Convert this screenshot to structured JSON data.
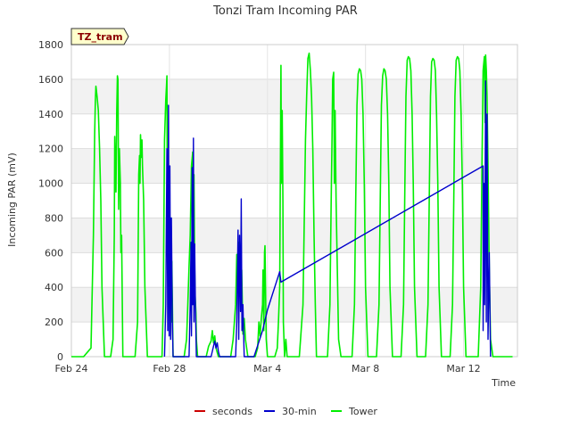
{
  "chart_data": {
    "type": "line",
    "title": "Tonzi Tram Incoming PAR",
    "xlabel": "Time",
    "ylabel": "Incoming PAR (mV)",
    "badge": "TZ_tram",
    "ylim": [
      0,
      1800
    ],
    "y_ticks": [
      0,
      200,
      400,
      600,
      800,
      1000,
      1200,
      1400,
      1600,
      1800
    ],
    "xlim": [
      0,
      18.2
    ],
    "x_ticks": [
      {
        "value": 0,
        "label": "Feb 24"
      },
      {
        "value": 4,
        "label": "Feb 28"
      },
      {
        "value": 8,
        "label": "Mar 4"
      },
      {
        "value": 12,
        "label": "Mar 8"
      },
      {
        "value": 16,
        "label": "Mar 12"
      }
    ],
    "series": [
      {
        "name": "seconds",
        "color": "#cc0000",
        "points": []
      },
      {
        "name": "30-min",
        "color": "#0000cc",
        "points": [
          [
            3.8,
            0
          ],
          [
            3.85,
            300
          ],
          [
            3.9,
            1200
          ],
          [
            3.93,
            150
          ],
          [
            3.96,
            1450
          ],
          [
            3.99,
            120
          ],
          [
            4.02,
            1100
          ],
          [
            4.05,
            100
          ],
          [
            4.08,
            800
          ],
          [
            4.12,
            200
          ],
          [
            4.15,
            0
          ],
          [
            4.8,
            0
          ],
          [
            4.85,
            300
          ],
          [
            4.88,
            660
          ],
          [
            4.9,
            120
          ],
          [
            4.93,
            1090
          ],
          [
            4.95,
            300
          ],
          [
            4.98,
            1260
          ],
          [
            5.0,
            200
          ],
          [
            5.03,
            650
          ],
          [
            5.06,
            300
          ],
          [
            5.1,
            0
          ],
          [
            5.7,
            0
          ],
          [
            5.8,
            60
          ],
          [
            5.85,
            90
          ],
          [
            5.9,
            50
          ],
          [
            5.95,
            80
          ],
          [
            6.0,
            30
          ],
          [
            6.05,
            0
          ],
          [
            6.7,
            0
          ],
          [
            6.75,
            200
          ],
          [
            6.8,
            730
          ],
          [
            6.83,
            100
          ],
          [
            6.86,
            700
          ],
          [
            6.9,
            260
          ],
          [
            6.93,
            910
          ],
          [
            6.96,
            150
          ],
          [
            7.0,
            300
          ],
          [
            7.05,
            0
          ],
          [
            7.45,
            0
          ],
          [
            7.8,
            150
          ],
          [
            8.0,
            270
          ],
          [
            8.5,
            490
          ],
          [
            8.55,
            430
          ],
          [
            16.8,
            1100
          ],
          [
            16.8,
            150
          ],
          [
            16.83,
            1000
          ],
          [
            16.86,
            300
          ],
          [
            16.9,
            1590
          ],
          [
            16.93,
            200
          ],
          [
            16.96,
            1400
          ],
          [
            17.0,
            100
          ],
          [
            17.05,
            600
          ],
          [
            17.1,
            0
          ]
        ]
      },
      {
        "name": "Tower",
        "color": "#00ee00",
        "points": [
          [
            0,
            0
          ],
          [
            0.5,
            0
          ],
          [
            0.8,
            50
          ],
          [
            0.9,
            700
          ],
          [
            0.95,
            1280
          ],
          [
            0.98,
            1480
          ],
          [
            1.0,
            1560
          ],
          [
            1.05,
            1500
          ],
          [
            1.1,
            1420
          ],
          [
            1.15,
            1200
          ],
          [
            1.2,
            900
          ],
          [
            1.25,
            400
          ],
          [
            1.35,
            0
          ],
          [
            1.6,
            0
          ],
          [
            1.7,
            100
          ],
          [
            1.75,
            700
          ],
          [
            1.77,
            1270
          ],
          [
            1.8,
            1050
          ],
          [
            1.82,
            950
          ],
          [
            1.85,
            1400
          ],
          [
            1.88,
            1620
          ],
          [
            1.9,
            1600
          ],
          [
            1.93,
            850
          ],
          [
            1.96,
            1200
          ],
          [
            2.0,
            1000
          ],
          [
            2.02,
            600
          ],
          [
            2.05,
            700
          ],
          [
            2.1,
            0
          ],
          [
            2.6,
            0
          ],
          [
            2.7,
            200
          ],
          [
            2.75,
            1050
          ],
          [
            2.78,
            1160
          ],
          [
            2.8,
            1000
          ],
          [
            2.82,
            1280
          ],
          [
            2.85,
            1150
          ],
          [
            2.88,
            1250
          ],
          [
            2.9,
            1100
          ],
          [
            2.95,
            900
          ],
          [
            3.0,
            400
          ],
          [
            3.1,
            0
          ],
          [
            3.7,
            0
          ],
          [
            3.75,
            300
          ],
          [
            3.8,
            1250
          ],
          [
            3.85,
            1480
          ],
          [
            3.88,
            1560
          ],
          [
            3.9,
            1620
          ],
          [
            3.92,
            500
          ],
          [
            3.95,
            1300
          ],
          [
            3.98,
            600
          ],
          [
            4.0,
            1050
          ],
          [
            4.03,
            400
          ],
          [
            4.05,
            800
          ],
          [
            4.08,
            200
          ],
          [
            4.1,
            550
          ],
          [
            4.15,
            0
          ],
          [
            4.6,
            0
          ],
          [
            4.7,
            100
          ],
          [
            4.75,
            300
          ],
          [
            4.8,
            520
          ],
          [
            4.85,
            700
          ],
          [
            4.9,
            1100
          ],
          [
            4.95,
            1180
          ],
          [
            4.97,
            600
          ],
          [
            5.0,
            1050
          ],
          [
            5.03,
            500
          ],
          [
            5.05,
            350
          ],
          [
            5.08,
            250
          ],
          [
            5.1,
            100
          ],
          [
            5.15,
            0
          ],
          [
            5.5,
            0
          ],
          [
            5.6,
            60
          ],
          [
            5.7,
            90
          ],
          [
            5.75,
            150
          ],
          [
            5.8,
            80
          ],
          [
            5.85,
            120
          ],
          [
            5.9,
            50
          ],
          [
            6.0,
            0
          ],
          [
            6.5,
            0
          ],
          [
            6.6,
            100
          ],
          [
            6.7,
            300
          ],
          [
            6.75,
            590
          ],
          [
            6.8,
            480
          ],
          [
            6.85,
            660
          ],
          [
            6.9,
            350
          ],
          [
            6.95,
            500
          ],
          [
            7.0,
            130
          ],
          [
            7.05,
            220
          ],
          [
            7.1,
            100
          ],
          [
            7.2,
            0
          ],
          [
            7.5,
            0
          ],
          [
            7.6,
            50
          ],
          [
            7.65,
            200
          ],
          [
            7.7,
            120
          ],
          [
            7.75,
            220
          ],
          [
            7.8,
            300
          ],
          [
            7.82,
            500
          ],
          [
            7.85,
            150
          ],
          [
            7.88,
            600
          ],
          [
            7.9,
            640
          ],
          [
            7.95,
            100
          ],
          [
            8.0,
            0
          ],
          [
            8.3,
            0
          ],
          [
            8.4,
            50
          ],
          [
            8.45,
            200
          ],
          [
            8.5,
            400
          ],
          [
            8.55,
            1680
          ],
          [
            8.57,
            1000
          ],
          [
            8.6,
            1420
          ],
          [
            8.63,
            900
          ],
          [
            8.65,
            200
          ],
          [
            8.7,
            0
          ],
          [
            8.75,
            100
          ],
          [
            8.8,
            0
          ],
          [
            9.3,
            0
          ],
          [
            9.45,
            300
          ],
          [
            9.55,
            1250
          ],
          [
            9.6,
            1500
          ],
          [
            9.65,
            1720
          ],
          [
            9.7,
            1750
          ],
          [
            9.75,
            1650
          ],
          [
            9.8,
            1500
          ],
          [
            9.85,
            1200
          ],
          [
            9.9,
            700
          ],
          [
            9.95,
            300
          ],
          [
            10.0,
            0
          ],
          [
            10.45,
            0
          ],
          [
            10.55,
            300
          ],
          [
            10.6,
            900
          ],
          [
            10.63,
            1200
          ],
          [
            10.66,
            1600
          ],
          [
            10.7,
            1640
          ],
          [
            10.73,
            1000
          ],
          [
            10.76,
            1420
          ],
          [
            10.8,
            900
          ],
          [
            10.85,
            500
          ],
          [
            10.9,
            100
          ],
          [
            11.0,
            0
          ],
          [
            11.45,
            0
          ],
          [
            11.55,
            300
          ],
          [
            11.6,
            900
          ],
          [
            11.65,
            1450
          ],
          [
            11.7,
            1630
          ],
          [
            11.75,
            1660
          ],
          [
            11.8,
            1650
          ],
          [
            11.85,
            1600
          ],
          [
            11.9,
            1400
          ],
          [
            11.95,
            1000
          ],
          [
            12.0,
            400
          ],
          [
            12.1,
            0
          ],
          [
            12.45,
            0
          ],
          [
            12.55,
            300
          ],
          [
            12.6,
            900
          ],
          [
            12.65,
            1450
          ],
          [
            12.7,
            1620
          ],
          [
            12.75,
            1660
          ],
          [
            12.8,
            1650
          ],
          [
            12.85,
            1600
          ],
          [
            12.9,
            1400
          ],
          [
            12.95,
            1000
          ],
          [
            13.0,
            400
          ],
          [
            13.1,
            0
          ],
          [
            13.45,
            0
          ],
          [
            13.55,
            300
          ],
          [
            13.6,
            900
          ],
          [
            13.65,
            1500
          ],
          [
            13.7,
            1710
          ],
          [
            13.75,
            1730
          ],
          [
            13.8,
            1720
          ],
          [
            13.85,
            1650
          ],
          [
            13.9,
            1400
          ],
          [
            13.95,
            1000
          ],
          [
            14.0,
            400
          ],
          [
            14.1,
            0
          ],
          [
            14.45,
            0
          ],
          [
            14.55,
            300
          ],
          [
            14.6,
            900
          ],
          [
            14.65,
            1500
          ],
          [
            14.7,
            1700
          ],
          [
            14.75,
            1720
          ],
          [
            14.8,
            1710
          ],
          [
            14.85,
            1650
          ],
          [
            14.9,
            1400
          ],
          [
            14.95,
            1000
          ],
          [
            15.0,
            400
          ],
          [
            15.1,
            0
          ],
          [
            15.45,
            0
          ],
          [
            15.55,
            300
          ],
          [
            15.6,
            900
          ],
          [
            15.65,
            1500
          ],
          [
            15.7,
            1710
          ],
          [
            15.75,
            1730
          ],
          [
            15.8,
            1720
          ],
          [
            15.85,
            1650
          ],
          [
            15.9,
            1400
          ],
          [
            15.95,
            1000
          ],
          [
            16.0,
            400
          ],
          [
            16.1,
            0
          ],
          [
            16.6,
            0
          ],
          [
            16.7,
            400
          ],
          [
            16.75,
            1100
          ],
          [
            16.8,
            1650
          ],
          [
            16.85,
            1730
          ],
          [
            16.88,
            1350
          ],
          [
            16.9,
            1740
          ],
          [
            16.93,
            1650
          ],
          [
            16.96,
            1500
          ],
          [
            17.0,
            1100
          ],
          [
            17.05,
            500
          ],
          [
            17.1,
            100
          ],
          [
            17.2,
            0
          ],
          [
            18.0,
            0
          ]
        ]
      }
    ]
  }
}
